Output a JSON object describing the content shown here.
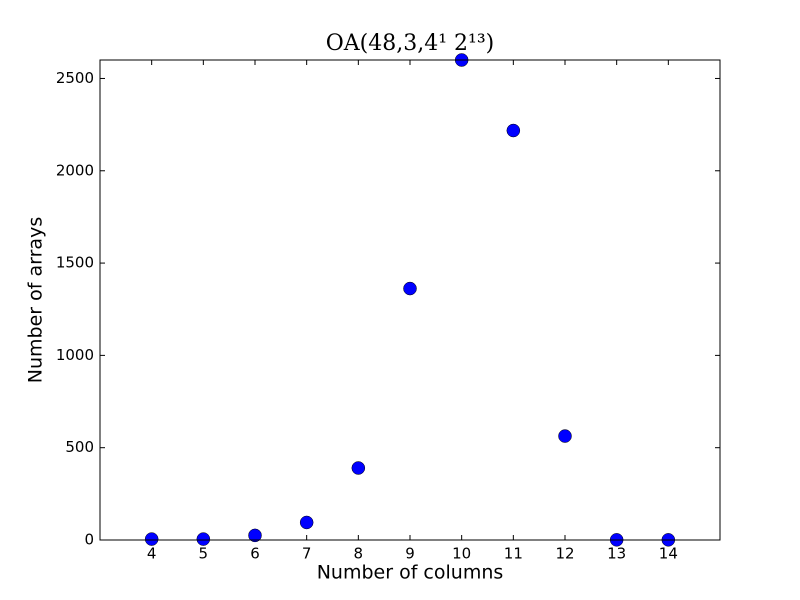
{
  "chart_data": {
    "type": "scatter",
    "title": "OA(48,3,4¹ 2¹³)",
    "xlabel": "Number of columns",
    "ylabel": "Number of arrays",
    "series": [
      {
        "color": "#0000ff",
        "x": [
          4,
          5,
          6,
          7,
          8,
          9,
          10,
          11,
          12,
          13,
          14
        ],
        "values": [
          5,
          5,
          25,
          95,
          390,
          1362,
          2600,
          2218,
          563,
          1,
          1
        ]
      }
    ],
    "xlim": [
      3,
      15
    ],
    "xticks": [
      4,
      5,
      6,
      7,
      8,
      9,
      10,
      11,
      12,
      13,
      14
    ],
    "ylim": [
      0,
      2600
    ],
    "yticks": [
      0,
      500,
      1000,
      1500,
      2000,
      2500
    ],
    "grid": false
  }
}
